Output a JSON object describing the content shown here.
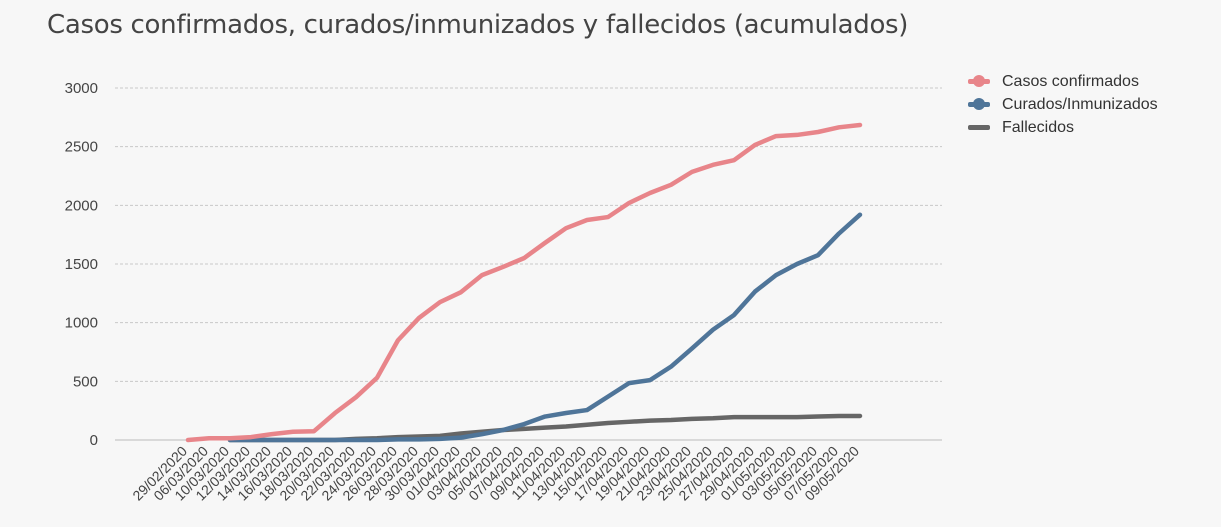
{
  "chart_data": {
    "type": "line",
    "title": "Casos confirmados, curados/inmunizados y fallecidos (acumulados)",
    "xlabel": "",
    "ylabel": "",
    "ylim": [
      0,
      3000
    ],
    "yticks": [
      0,
      500,
      1000,
      1500,
      2000,
      2500,
      3000
    ],
    "grid": true,
    "legend_position": "top-right",
    "categories": [
      "29/02/2020",
      "06/03/2020",
      "10/03/2020",
      "12/03/2020",
      "14/03/2020",
      "16/03/2020",
      "18/03/2020",
      "20/03/2020",
      "22/03/2020",
      "24/03/2020",
      "26/03/2020",
      "28/03/2020",
      "30/03/2020",
      "01/04/2020",
      "03/04/2020",
      "05/04/2020",
      "07/04/2020",
      "09/04/2020",
      "11/04/2020",
      "13/04/2020",
      "15/04/2020",
      "17/04/2020",
      "19/04/2020",
      "21/04/2020",
      "23/04/2020",
      "25/04/2020",
      "27/04/2020",
      "29/04/2020",
      "01/05/2020",
      "03/05/2020",
      "05/05/2020",
      "07/05/2020",
      "09/05/2020"
    ],
    "series": [
      {
        "name": "Casos confirmados",
        "color": "#e8858a",
        "marker": "circle",
        "values": [
          0,
          15,
          15,
          25,
          50,
          70,
          75,
          230,
          365,
          530,
          850,
          1040,
          1175,
          1260,
          1405,
          1475,
          1550,
          1680,
          1805,
          1875,
          1900,
          2020,
          2105,
          2175,
          2285,
          2345,
          2385,
          2515,
          2590,
          2600,
          2625,
          2665,
          2685
        ]
      },
      {
        "name": "Curados/Inmunizados",
        "color": "#4f7599",
        "marker": "circle",
        "values": [
          null,
          null,
          0,
          0,
          0,
          0,
          0,
          0,
          0,
          0,
          5,
          5,
          10,
          20,
          50,
          85,
          135,
          200,
          230,
          255,
          370,
          485,
          510,
          625,
          780,
          940,
          1065,
          1265,
          1405,
          1500,
          1575,
          1760,
          1920
        ]
      },
      {
        "name": "Fallecidos",
        "color": "#666666",
        "marker": "none",
        "values": [
          null,
          null,
          0,
          0,
          0,
          0,
          0,
          0,
          10,
          15,
          25,
          30,
          35,
          55,
          70,
          85,
          95,
          105,
          115,
          130,
          145,
          155,
          165,
          170,
          180,
          185,
          195,
          195,
          195,
          195,
          200,
          205,
          205
        ]
      }
    ]
  }
}
